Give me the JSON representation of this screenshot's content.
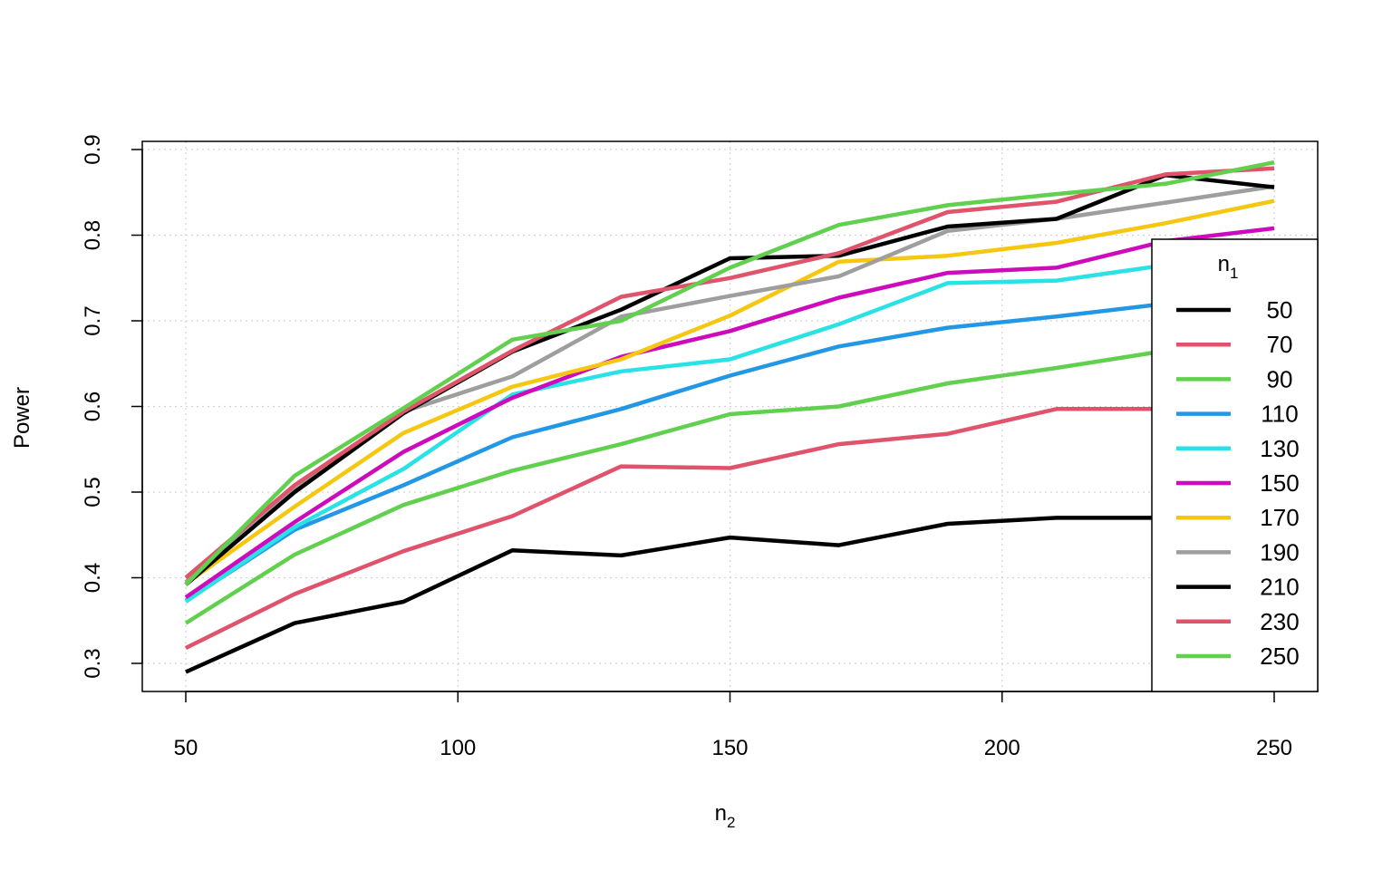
{
  "chart_data": {
    "type": "line",
    "title": "",
    "xlabel": "n",
    "xlabel_sub": "2",
    "ylabel": "Power",
    "xlim": [
      42,
      250
    ],
    "ylim": [
      0.268,
      0.91
    ],
    "x_ticks": [
      50,
      100,
      150,
      200,
      250
    ],
    "y_ticks": [
      0.3,
      0.4,
      0.5,
      0.6,
      0.7,
      0.8,
      0.9
    ],
    "grid": true,
    "legend": {
      "title": "n",
      "title_sub": "1",
      "placement": "right"
    },
    "x": [
      50,
      70,
      90,
      110,
      130,
      150,
      170,
      190,
      210,
      230,
      250
    ],
    "series": [
      {
        "name": "50",
        "color": "#000000",
        "values": [
          0.29,
          0.347,
          0.372,
          0.432,
          0.426,
          0.447,
          0.438,
          0.463,
          0.47,
          0.47,
          0.471
        ]
      },
      {
        "name": "70",
        "color": "#DF536B",
        "values": [
          0.318,
          0.381,
          0.431,
          0.472,
          0.53,
          0.528,
          0.556,
          0.568,
          0.597,
          0.597,
          0.598
        ]
      },
      {
        "name": "90",
        "color": "#61D04F",
        "values": [
          0.347,
          0.427,
          0.485,
          0.525,
          0.556,
          0.591,
          0.6,
          0.627,
          0.645,
          0.665,
          0.675
        ]
      },
      {
        "name": "110",
        "color": "#2297E6",
        "values": [
          0.373,
          0.456,
          0.508,
          0.564,
          0.597,
          0.636,
          0.67,
          0.692,
          0.705,
          0.72,
          0.73
        ]
      },
      {
        "name": "130",
        "color": "#28E2E5",
        "values": [
          0.372,
          0.459,
          0.527,
          0.614,
          0.641,
          0.655,
          0.696,
          0.744,
          0.747,
          0.765,
          0.775
        ]
      },
      {
        "name": "150",
        "color": "#CD0BBC",
        "values": [
          0.377,
          0.465,
          0.547,
          0.61,
          0.658,
          0.688,
          0.727,
          0.756,
          0.762,
          0.793,
          0.808
        ]
      },
      {
        "name": "170",
        "color": "#F5C710",
        "values": [
          0.393,
          0.483,
          0.569,
          0.623,
          0.655,
          0.706,
          0.769,
          0.776,
          0.791,
          0.814,
          0.84
        ]
      },
      {
        "name": "190",
        "color": "#9E9E9E",
        "values": [
          0.395,
          0.502,
          0.594,
          0.635,
          0.705,
          0.729,
          0.752,
          0.805,
          0.819,
          0.838,
          0.857
        ]
      },
      {
        "name": "210",
        "color": "#000000",
        "values": [
          0.392,
          0.5,
          0.592,
          0.664,
          0.713,
          0.773,
          0.776,
          0.81,
          0.819,
          0.87,
          0.856
        ]
      },
      {
        "name": "230",
        "color": "#DF536B",
        "values": [
          0.4,
          0.508,
          0.594,
          0.665,
          0.728,
          0.75,
          0.779,
          0.827,
          0.839,
          0.871,
          0.878
        ]
      },
      {
        "name": "250",
        "color": "#61D04F",
        "values": [
          0.392,
          0.519,
          0.598,
          0.678,
          0.7,
          0.762,
          0.812,
          0.835,
          0.848,
          0.86,
          0.885
        ]
      }
    ]
  }
}
